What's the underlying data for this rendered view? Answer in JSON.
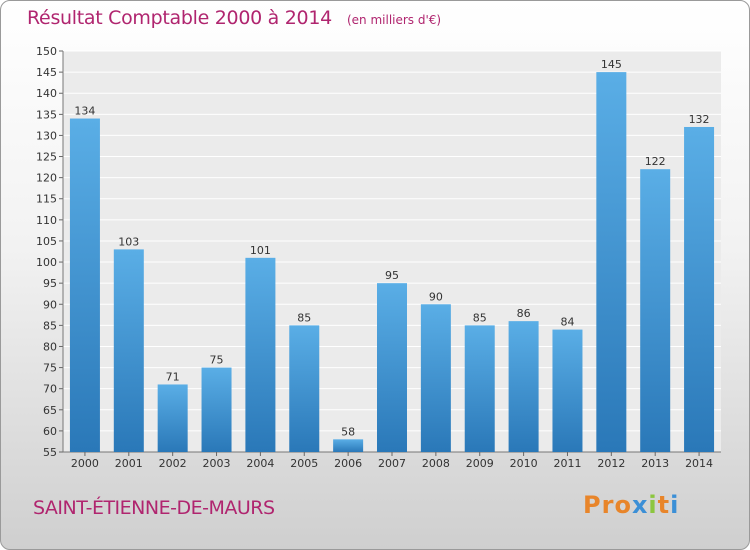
{
  "header": {
    "title": "Résultat Comptable 2000 à 2014",
    "subtitle": "(en milliers d'€)"
  },
  "footer": {
    "commune": "SAINT-ÉTIENNE-DE-MAURS",
    "logo_text": "Proxiti"
  },
  "colors": {
    "title": "#b0256f",
    "bar_light": "#5aaee6",
    "bar_dark": "#2a78b8",
    "logo_letters": [
      "#e8852a",
      "#e8852a",
      "#e8852a",
      "#3b8fd6",
      "#8cc63f",
      "#e8852a",
      "#3b8fd6"
    ]
  },
  "chart_data": {
    "type": "bar",
    "title": "Résultat Comptable 2000 à 2014",
    "subtitle": "(en milliers d'€)",
    "xlabel": "",
    "ylabel": "",
    "categories": [
      "2000",
      "2001",
      "2002",
      "2003",
      "2004",
      "2005",
      "2006",
      "2007",
      "2008",
      "2009",
      "2010",
      "2011",
      "2012",
      "2013",
      "2014"
    ],
    "values": [
      134,
      103,
      71,
      75,
      101,
      85,
      58,
      95,
      90,
      85,
      86,
      84,
      145,
      122,
      132
    ],
    "ylim": [
      55,
      150
    ],
    "yticks": [
      55,
      60,
      65,
      70,
      75,
      80,
      85,
      90,
      95,
      100,
      105,
      110,
      115,
      120,
      125,
      130,
      135,
      140,
      145,
      150
    ],
    "grid": true,
    "legend": "none"
  }
}
